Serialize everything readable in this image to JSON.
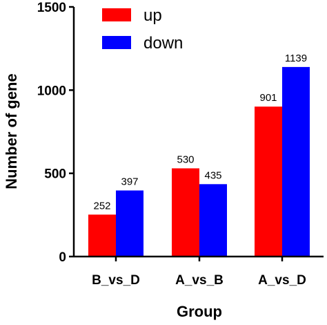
{
  "chart_data": {
    "type": "bar",
    "categories": [
      "B_vs_D",
      "A_vs_B",
      "A_vs_D"
    ],
    "series": [
      {
        "name": "up",
        "color": "#ff0000",
        "values": [
          252,
          530,
          901
        ]
      },
      {
        "name": "down",
        "color": "#0000ff",
        "values": [
          397,
          435,
          1139
        ]
      }
    ],
    "xlabel": "Group",
    "ylabel": "Number of gene",
    "ylim": [
      0,
      1500
    ],
    "yticks": [
      0,
      500,
      1000,
      1500
    ],
    "grid": false,
    "legend_position": "top-left"
  }
}
